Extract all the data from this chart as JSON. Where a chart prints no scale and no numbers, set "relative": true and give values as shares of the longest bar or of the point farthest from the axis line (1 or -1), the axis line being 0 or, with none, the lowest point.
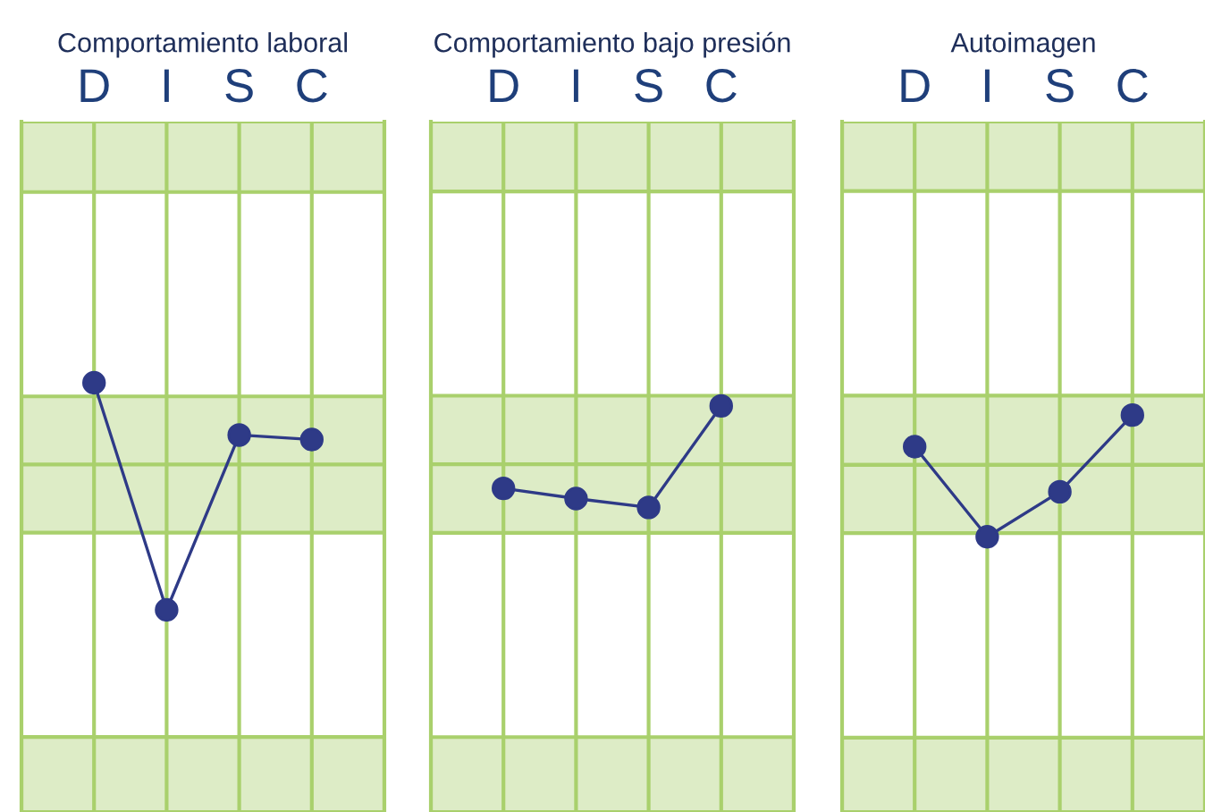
{
  "chart_data": [
    {
      "type": "line",
      "title": "Comportamiento laboral",
      "categories": [
        "D",
        "I",
        "S",
        "C"
      ],
      "relative": true,
      "marker": "circle",
      "grid": "x",
      "tick_labels": "x",
      "series": [
        {
          "color": "#2e3a87",
          "values": [
            1,
            0,
            0.77,
            0.75
          ]
        }
      ],
      "bands": [
        {
          "axis": "y",
          "from": 1.84,
          "to": 2.15,
          "color": "#ddecc6"
        },
        {
          "axis": "y",
          "from": 0.64,
          "to": 0.94,
          "color": "#ddecc6"
        },
        {
          "axis": "y",
          "from": 0.34,
          "to": 0.64,
          "color": "#ddecc6"
        },
        {
          "axis": "y",
          "from": -0.89,
          "to": -0.56,
          "color": "#ddecc6"
        }
      ]
    },
    {
      "type": "line",
      "title": "Comportamiento bajo presión",
      "categories": [
        "D",
        "I",
        "S",
        "C"
      ],
      "relative": true,
      "marker": "circle",
      "grid": "x",
      "tick_labels": "x",
      "series": [
        {
          "color": "#2e3a87",
          "values": [
            0.35,
            0.27,
            0.2,
            1
          ]
        }
      ],
      "bands": [
        {
          "axis": "y",
          "from": 2.69,
          "to": 3.24,
          "color": "#ddecc6"
        },
        {
          "axis": "y",
          "from": 0.54,
          "to": 1.08,
          "color": "#ddecc6"
        },
        {
          "axis": "y",
          "from": 0,
          "to": 0.54,
          "color": "#ddecc6"
        },
        {
          "axis": "y",
          "from": -2.2,
          "to": -1.61,
          "color": "#ddecc6"
        }
      ]
    },
    {
      "type": "line",
      "title": "Autoimagen",
      "categories": [
        "D",
        "I",
        "S",
        "C"
      ],
      "relative": true,
      "marker": "circle",
      "grid": "x",
      "tick_labels": "x",
      "series": [
        {
          "color": "#2e3a87",
          "values": [
            0.74,
            0,
            0.37,
            1
          ]
        }
      ],
      "bands": [
        {
          "axis": "y",
          "from": 2.84,
          "to": 3.41,
          "color": "#ddecc6"
        },
        {
          "axis": "y",
          "from": 0.59,
          "to": 1.16,
          "color": "#ddecc6"
        },
        {
          "axis": "y",
          "from": 0.03,
          "to": 0.59,
          "color": "#ddecc6"
        },
        {
          "axis": "y",
          "from": -2.26,
          "to": -1.65,
          "color": "#ddecc6"
        }
      ]
    }
  ]
}
